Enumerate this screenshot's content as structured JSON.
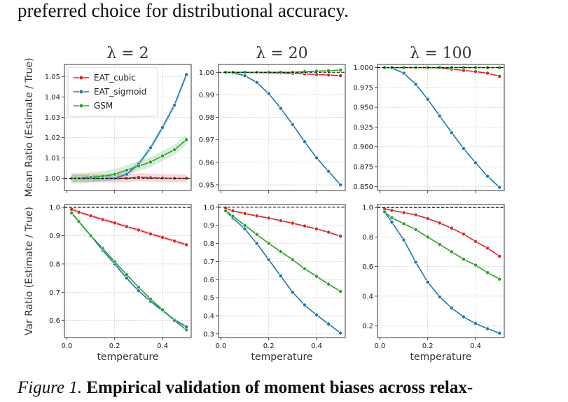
{
  "header_text": "preferred choice for distributional accuracy.",
  "caption": {
    "label": "Figure 1.",
    "bold": "Empirical validation of moment biases across relax-"
  },
  "colors": {
    "EAT_cubic": "#d62728",
    "EAT_sigmoid": "#1f77b4",
    "GSM": "#2ca02c",
    "reference": "#000000",
    "grid": "#bbbbbb"
  },
  "chart_data": [
    {
      "type": "line",
      "title": "λ = 2",
      "xlabel": "",
      "ylabel": "Mean Ratio (Estimate / True)",
      "xlim": [
        -0.01,
        0.52
      ],
      "ylim": [
        0.994,
        1.056
      ],
      "xticks": [
        0.0,
        0.2,
        0.4
      ],
      "xticklabels": [
        "",
        "",
        ""
      ],
      "yticks": [
        1.0,
        1.01,
        1.02,
        1.03,
        1.04,
        1.05
      ],
      "yticklabels": [
        "1.00",
        "1.01",
        "1.02",
        "1.03",
        "1.04",
        "1.05"
      ],
      "reference_line": 1.0,
      "grid": true,
      "legend": "top-left",
      "x": [
        0.02,
        0.05,
        0.1,
        0.15,
        0.2,
        0.25,
        0.3,
        0.35,
        0.4,
        0.45,
        0.5
      ],
      "series": [
        {
          "name": "EAT_cubic",
          "values": [
            1.0,
            1.0,
            1.0,
            1.0,
            1.0,
            1.0,
            1.0005,
            1.0003,
            1.0001,
            1.0,
            1.0
          ],
          "band": 0.002
        },
        {
          "name": "EAT_sigmoid",
          "values": [
            1.0,
            1.0,
            1.0,
            1.0,
            1.0,
            1.002,
            1.007,
            1.015,
            1.025,
            1.036,
            1.051
          ],
          "band": 0.0015
        },
        {
          "name": "GSM",
          "values": [
            1.0,
            1.0,
            1.0005,
            1.001,
            1.002,
            1.004,
            1.006,
            1.008,
            1.011,
            1.014,
            1.019
          ],
          "band": 0.0025
        }
      ]
    },
    {
      "type": "line",
      "title": "λ = 20",
      "xlabel": "",
      "ylabel": "",
      "xlim": [
        -0.01,
        0.52
      ],
      "ylim": [
        0.9475,
        1.0035
      ],
      "xticks": [
        0.0,
        0.2,
        0.4
      ],
      "xticklabels": [
        "",
        "",
        ""
      ],
      "yticks": [
        0.95,
        0.96,
        0.97,
        0.98,
        0.99,
        1.0
      ],
      "yticklabels": [
        "0.95",
        "0.96",
        "0.97",
        "0.98",
        "0.99",
        "1.00"
      ],
      "reference_line": 1.0,
      "grid": true,
      "legend": "",
      "x": [
        0.02,
        0.05,
        0.1,
        0.15,
        0.2,
        0.25,
        0.3,
        0.35,
        0.4,
        0.45,
        0.5
      ],
      "series": [
        {
          "name": "EAT_cubic",
          "values": [
            1.0,
            1.0,
            1.0,
            0.9999,
            0.9998,
            0.9997,
            0.9995,
            0.9993,
            0.999,
            0.9988,
            0.9985
          ],
          "band": 0.0003
        },
        {
          "name": "EAT_sigmoid",
          "values": [
            1.0,
            0.9998,
            0.9985,
            0.9955,
            0.9905,
            0.984,
            0.9768,
            0.9692,
            0.962,
            0.956,
            0.95
          ],
          "band": 0.0004
        },
        {
          "name": "GSM",
          "values": [
            1.0,
            1.0,
            1.0,
            1.0,
            1.0,
            1.0,
            1.0,
            1.0003,
            1.0005,
            1.0007,
            1.001
          ],
          "band": 0.0003
        }
      ]
    },
    {
      "type": "line",
      "title": "λ = 100",
      "xlabel": "",
      "ylabel": "",
      "xlim": [
        -0.01,
        0.52
      ],
      "ylim": [
        0.845,
        1.004
      ],
      "xticks": [
        0.0,
        0.2,
        0.4
      ],
      "xticklabels": [
        "",
        "",
        ""
      ],
      "yticks": [
        0.85,
        0.875,
        0.9,
        0.925,
        0.95,
        0.975,
        1.0
      ],
      "yticklabels": [
        "0.850",
        "0.875",
        "0.900",
        "0.925",
        "0.950",
        "0.975",
        "1.000"
      ],
      "reference_line": 1.0,
      "grid": true,
      "legend": "",
      "x": [
        0.02,
        0.05,
        0.1,
        0.15,
        0.2,
        0.25,
        0.3,
        0.35,
        0.4,
        0.45,
        0.5
      ],
      "series": [
        {
          "name": "EAT_cubic",
          "values": [
            1.0,
            1.0,
            1.0,
            1.0,
            1.0,
            0.9995,
            0.998,
            0.9965,
            0.995,
            0.993,
            0.989
          ],
          "band": 0.0005
        },
        {
          "name": "EAT_sigmoid",
          "values": [
            1.0,
            0.9995,
            0.993,
            0.979,
            0.96,
            0.939,
            0.918,
            0.898,
            0.88,
            0.863,
            0.849
          ],
          "band": 0.0008
        },
        {
          "name": "GSM",
          "values": [
            1.0,
            1.0,
            1.0,
            1.0,
            1.0,
            1.0,
            1.0,
            1.0,
            1.0,
            1.0,
            1.0
          ],
          "band": 0.0004
        }
      ]
    },
    {
      "type": "line",
      "title": "",
      "xlabel": "temperature",
      "ylabel": "Var Ratio (Estimate / True)",
      "xlim": [
        -0.01,
        0.52
      ],
      "ylim": [
        0.54,
        1.01
      ],
      "xticks": [
        0.0,
        0.2,
        0.4
      ],
      "xticklabels": [
        "0.0",
        "0.2",
        "0.4"
      ],
      "yticks": [
        0.6,
        0.7,
        0.8,
        0.9,
        1.0
      ],
      "yticklabels": [
        "0.6",
        "0.7",
        "0.8",
        "0.9",
        "1.0"
      ],
      "reference_line": 1.0,
      "grid": true,
      "legend": "",
      "x": [
        0.02,
        0.05,
        0.1,
        0.15,
        0.2,
        0.25,
        0.3,
        0.35,
        0.4,
        0.45,
        0.5
      ],
      "series": [
        {
          "name": "EAT_cubic",
          "values": [
            0.993,
            0.983,
            0.97,
            0.957,
            0.945,
            0.932,
            0.92,
            0.906,
            0.894,
            0.881,
            0.868
          ],
          "band": 0.006
        },
        {
          "name": "EAT_sigmoid",
          "values": [
            0.98,
            0.95,
            0.9,
            0.848,
            0.8,
            0.75,
            0.705,
            0.668,
            0.635,
            0.603,
            0.578
          ],
          "band": 0.004
        },
        {
          "name": "GSM",
          "values": [
            0.98,
            0.95,
            0.9,
            0.855,
            0.808,
            0.762,
            0.718,
            0.676,
            0.638,
            0.6,
            0.567
          ],
          "band": 0.004
        }
      ]
    },
    {
      "type": "line",
      "title": "",
      "xlabel": "temperature",
      "ylabel": "",
      "xlim": [
        -0.01,
        0.52
      ],
      "ylim": [
        0.28,
        1.015
      ],
      "xticks": [
        0.0,
        0.2,
        0.4
      ],
      "xticklabels": [
        "0.0",
        "0.2",
        "0.4"
      ],
      "yticks": [
        0.3,
        0.4,
        0.5,
        0.6,
        0.7,
        0.8,
        0.9,
        1.0
      ],
      "yticklabels": [
        "0.3",
        "0.4",
        "0.5",
        "0.6",
        "0.7",
        "0.8",
        "0.9",
        "1.0"
      ],
      "reference_line": 1.0,
      "grid": true,
      "legend": "",
      "x": [
        0.02,
        0.05,
        0.1,
        0.15,
        0.2,
        0.25,
        0.3,
        0.35,
        0.4,
        0.45,
        0.5
      ],
      "series": [
        {
          "name": "EAT_cubic",
          "values": [
            0.995,
            0.98,
            0.965,
            0.952,
            0.94,
            0.926,
            0.912,
            0.896,
            0.88,
            0.862,
            0.84
          ],
          "band": 0.004
        },
        {
          "name": "EAT_sigmoid",
          "values": [
            0.98,
            0.94,
            0.88,
            0.8,
            0.71,
            0.62,
            0.53,
            0.46,
            0.405,
            0.355,
            0.305
          ],
          "band": 0.004
        },
        {
          "name": "GSM",
          "values": [
            0.98,
            0.95,
            0.9,
            0.85,
            0.8,
            0.755,
            0.71,
            0.66,
            0.618,
            0.575,
            0.535
          ],
          "band": 0.004
        }
      ]
    },
    {
      "type": "line",
      "title": "",
      "xlabel": "temperature",
      "ylabel": "",
      "xlim": [
        -0.01,
        0.52
      ],
      "ylim": [
        0.12,
        1.02
      ],
      "xticks": [
        0.0,
        0.2,
        0.4
      ],
      "xticklabels": [
        "0.0",
        "0.2",
        "0.4"
      ],
      "yticks": [
        0.2,
        0.4,
        0.6,
        0.8,
        1.0
      ],
      "yticklabels": [
        "0.2",
        "0.4",
        "0.6",
        "0.8",
        "1.0"
      ],
      "reference_line": 1.0,
      "grid": true,
      "legend": "",
      "x": [
        0.02,
        0.05,
        0.1,
        0.15,
        0.2,
        0.25,
        0.3,
        0.35,
        0.4,
        0.45,
        0.5
      ],
      "series": [
        {
          "name": "EAT_cubic",
          "values": [
            0.99,
            0.98,
            0.965,
            0.95,
            0.925,
            0.895,
            0.86,
            0.82,
            0.77,
            0.725,
            0.67
          ],
          "band": 0.005
        },
        {
          "name": "EAT_sigmoid",
          "values": [
            0.97,
            0.9,
            0.78,
            0.63,
            0.495,
            0.395,
            0.32,
            0.26,
            0.215,
            0.18,
            0.15
          ],
          "band": 0.004
        },
        {
          "name": "GSM",
          "values": [
            0.97,
            0.93,
            0.89,
            0.85,
            0.8,
            0.75,
            0.7,
            0.65,
            0.61,
            0.56,
            0.515
          ],
          "band": 0.004
        }
      ]
    }
  ]
}
